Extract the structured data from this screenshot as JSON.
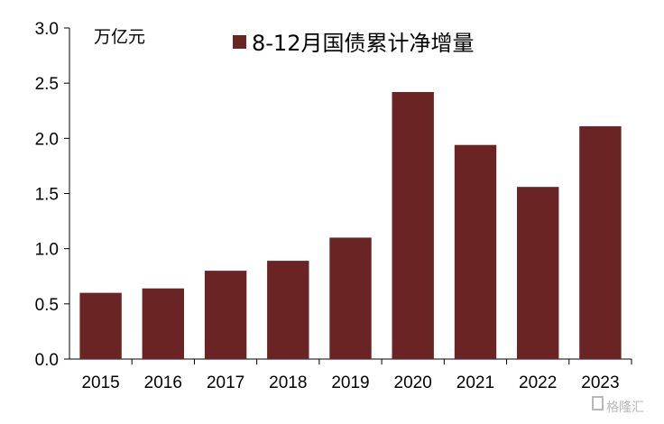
{
  "chart_data": {
    "type": "bar",
    "title": "",
    "ylabel": "万亿元",
    "xlabel": "",
    "categories": [
      "2015",
      "2016",
      "2017",
      "2018",
      "2019",
      "2020",
      "2021",
      "2022",
      "2023"
    ],
    "series": [
      {
        "name": "8-12月国债累计净增量",
        "values": [
          0.6,
          0.64,
          0.8,
          0.89,
          1.1,
          2.42,
          1.94,
          1.56,
          2.11
        ]
      }
    ],
    "ylim": [
      0,
      3.0
    ],
    "yticks": [
      "0.0",
      "0.5",
      "1.0",
      "1.5",
      "2.0",
      "2.5",
      "3.0"
    ],
    "grid": false,
    "legend_position": "top",
    "colors": {
      "bar": "#6B2424",
      "axis": "#000000"
    }
  },
  "watermark": {
    "text": "格隆汇"
  }
}
